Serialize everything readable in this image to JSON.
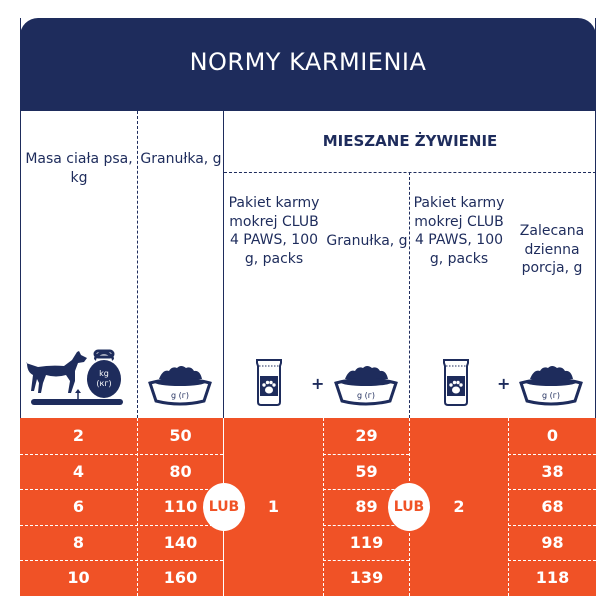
{
  "title": "NORMY KARMIENIA",
  "headers": {
    "body_mass": "Masa ciała psa, kg",
    "granules": "Granułka, g",
    "mixed": "MIESZANE ŻYWIENIE",
    "pack1": "Pakiet karmy mokrej CLUB 4 PAWS, 100 g, packs",
    "granules2": "Granułka, g",
    "pack2": "Pakiet karmy mokrej CLUB 4 PAWS, 100 g, packs",
    "daily": "Zalecana dzienna porcja, g"
  },
  "icons": {
    "scale": "dog-on-scale-icon",
    "scale_label_1": "kg",
    "scale_label_2": "(кг)",
    "bowl_label": "g (г)",
    "pouch": "pouch-paw-icon",
    "plus": "+"
  },
  "rows": [
    {
      "mass": "2",
      "granules": "50",
      "mix1_granules": "29",
      "mix2_daily": "0"
    },
    {
      "mass": "4",
      "granules": "80",
      "mix1_granules": "59",
      "mix2_daily": "38"
    },
    {
      "mass": "6",
      "granules": "110",
      "mix1_granules": "89",
      "mix2_daily": "68"
    },
    {
      "mass": "8",
      "granules": "140",
      "mix1_granules": "119",
      "mix2_daily": "98"
    },
    {
      "mass": "10",
      "granules": "160",
      "mix1_granules": "139",
      "mix2_daily": "118"
    }
  ],
  "mix1_packs": "1",
  "mix2_packs": "2",
  "or_label": "LUB",
  "colors": {
    "navy": "#1e2c5c",
    "orange": "#f05226"
  }
}
